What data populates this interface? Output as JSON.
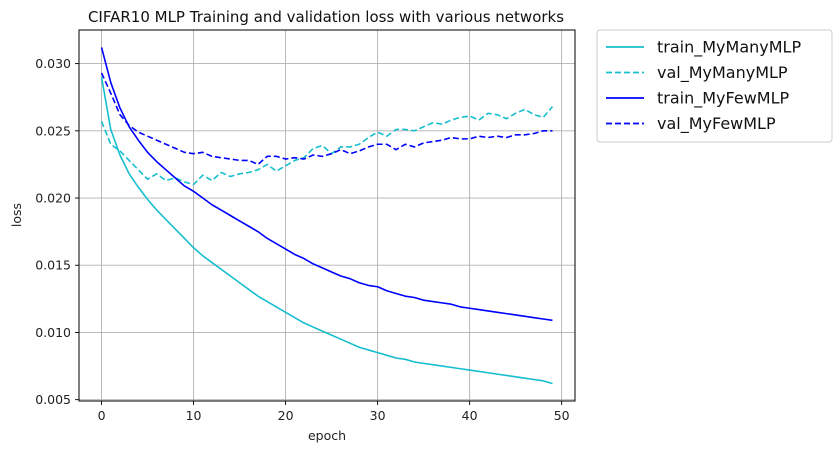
{
  "chart_data": {
    "type": "line",
    "title": "CIFAR10 MLP Training and validation loss with various networks",
    "xlabel": "epoch",
    "ylabel": "loss",
    "xlim": [
      -2.45,
      51.45
    ],
    "ylim": [
      0.0049,
      0.0325
    ],
    "x_ticks": [
      0,
      10,
      20,
      30,
      40,
      50
    ],
    "x_tick_labels": [
      "0",
      "10",
      "20",
      "30",
      "40",
      "50"
    ],
    "y_ticks": [
      0.005,
      0.01,
      0.015,
      0.02,
      0.025,
      0.03
    ],
    "y_tick_labels": [
      "0.005",
      "0.010",
      "0.015",
      "0.020",
      "0.025",
      "0.030"
    ],
    "grid": true,
    "legend_placement": "outside-upper-right",
    "x": [
      0,
      1,
      2,
      3,
      4,
      5,
      6,
      7,
      8,
      9,
      10,
      11,
      12,
      13,
      14,
      15,
      16,
      17,
      18,
      19,
      20,
      21,
      22,
      23,
      24,
      25,
      26,
      27,
      28,
      29,
      30,
      31,
      32,
      33,
      34,
      35,
      36,
      37,
      38,
      39,
      40,
      41,
      42,
      43,
      44,
      45,
      46,
      47,
      48,
      49
    ],
    "series": [
      {
        "name": "train_MyManyMLP",
        "color": "#17becf",
        "dash": "solid",
        "values": [
          0.029,
          0.0251,
          0.0232,
          0.0218,
          0.0208,
          0.0199,
          0.0191,
          0.0184,
          0.0177,
          0.017,
          0.0163,
          0.0157,
          0.0152,
          0.0147,
          0.0142,
          0.0137,
          0.0132,
          0.0127,
          0.0123,
          0.0119,
          0.0115,
          0.0111,
          0.0107,
          0.0104,
          0.0101,
          0.0098,
          0.0095,
          0.0092,
          0.0089,
          0.0087,
          0.0085,
          0.0083,
          0.0081,
          0.008,
          0.0078,
          0.0077,
          0.0076,
          0.0075,
          0.0074,
          0.0073,
          0.0072,
          0.0071,
          0.007,
          0.0069,
          0.0068,
          0.0067,
          0.0066,
          0.0065,
          0.0064,
          0.0062
        ]
      },
      {
        "name": "val_MyManyMLP",
        "color": "#17becf",
        "dash": "dashed",
        "values": [
          0.0257,
          0.024,
          0.0235,
          0.0228,
          0.0221,
          0.0214,
          0.0218,
          0.0213,
          0.0215,
          0.0212,
          0.021,
          0.0217,
          0.0213,
          0.0219,
          0.0216,
          0.0218,
          0.0219,
          0.0221,
          0.0225,
          0.022,
          0.0224,
          0.0228,
          0.023,
          0.0237,
          0.0239,
          0.0233,
          0.0238,
          0.0238,
          0.024,
          0.0245,
          0.0249,
          0.0246,
          0.0251,
          0.0251,
          0.025,
          0.0253,
          0.0256,
          0.0255,
          0.0258,
          0.026,
          0.0261,
          0.0258,
          0.0263,
          0.0262,
          0.0259,
          0.0263,
          0.0266,
          0.0262,
          0.026,
          0.0268
        ]
      },
      {
        "name": "train_MyFewMLP",
        "color": "#0000ff",
        "dash": "solid",
        "values": [
          0.0312,
          0.0286,
          0.0267,
          0.0253,
          0.0243,
          0.0234,
          0.0227,
          0.0221,
          0.0215,
          0.0209,
          0.0205,
          0.02,
          0.0195,
          0.0191,
          0.0187,
          0.0183,
          0.0179,
          0.0175,
          0.017,
          0.0166,
          0.0162,
          0.0158,
          0.0155,
          0.0151,
          0.0148,
          0.0145,
          0.0142,
          0.014,
          0.0137,
          0.0135,
          0.0134,
          0.0131,
          0.0129,
          0.0127,
          0.0126,
          0.0124,
          0.0123,
          0.0122,
          0.0121,
          0.0119,
          0.0118,
          0.0117,
          0.0116,
          0.0115,
          0.0114,
          0.0113,
          0.0112,
          0.0111,
          0.011,
          0.0109
        ]
      },
      {
        "name": "val_MyFewMLP",
        "color": "#0000ff",
        "dash": "dashed",
        "values": [
          0.0293,
          0.0278,
          0.0262,
          0.0254,
          0.0249,
          0.0246,
          0.0243,
          0.024,
          0.0237,
          0.0234,
          0.0233,
          0.0234,
          0.0231,
          0.023,
          0.0229,
          0.0228,
          0.0228,
          0.0225,
          0.0231,
          0.0231,
          0.0229,
          0.023,
          0.0229,
          0.0232,
          0.0231,
          0.0233,
          0.0236,
          0.0233,
          0.0235,
          0.0238,
          0.024,
          0.024,
          0.0236,
          0.024,
          0.0238,
          0.0241,
          0.0242,
          0.0243,
          0.0245,
          0.0244,
          0.0244,
          0.0246,
          0.0245,
          0.0246,
          0.0245,
          0.0247,
          0.0247,
          0.0248,
          0.025,
          0.025
        ]
      }
    ]
  }
}
